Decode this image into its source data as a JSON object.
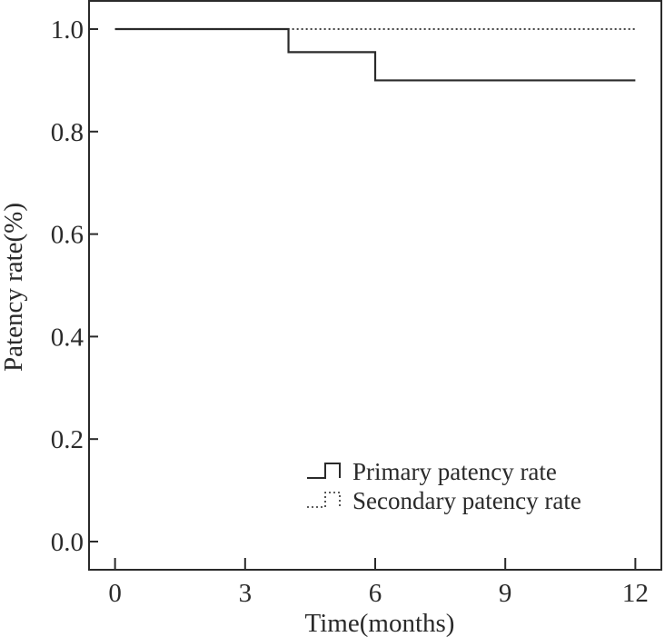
{
  "chart_data": {
    "type": "line",
    "title": "",
    "xlabel": "Time(months)",
    "ylabel": "Patency rate(%)",
    "xlim": [
      -0.6,
      12.6
    ],
    "ylim": [
      -0.055,
      1.055
    ],
    "x_ticks": [
      0,
      3,
      6,
      9,
      12
    ],
    "x_tick_labels": [
      "0",
      "3",
      "6",
      "9",
      "12"
    ],
    "y_ticks": [
      0.0,
      0.2,
      0.4,
      0.6,
      0.8,
      1.0
    ],
    "y_tick_labels": [
      "0.0",
      "0.2",
      "0.4",
      "0.6",
      "0.8",
      "1.0"
    ],
    "grid": false,
    "legend_position": "bottom-right",
    "series": [
      {
        "name": "Primary patency rate",
        "style": "step-solid",
        "color": "#2a2a2a",
        "x": [
          0,
          4,
          4,
          6,
          6,
          12
        ],
        "y": [
          1.0,
          1.0,
          0.955,
          0.955,
          0.9,
          0.9
        ]
      },
      {
        "name": "Secondary patency rate",
        "style": "step-dotted",
        "color": "#2a2a2a",
        "x": [
          0,
          12
        ],
        "y": [
          1.0,
          1.0
        ]
      }
    ]
  }
}
